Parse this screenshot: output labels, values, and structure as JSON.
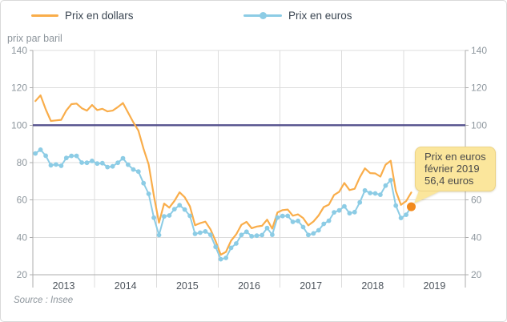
{
  "legend": {
    "dollars": "Prix en dollars",
    "euros": "Prix en euros"
  },
  "source": "Source : Insee",
  "tooltip": {
    "line1": "Prix en euros",
    "line2": "février 2019",
    "line3": "56,4 euros"
  },
  "colors": {
    "dollars": "#F9AD4A",
    "euros": "#8CCCE5",
    "highlight_dot": "#F28A1D",
    "reference_line": "#54518D",
    "grid": "#DCDCDC",
    "axis": "#ADADAD",
    "tick_label": "#8E979E",
    "year_label": "#4D545C",
    "tooltip_bg": "#FBE69C",
    "tooltip_border": "#EDD487",
    "tooltip_text": "#4A4A4A"
  },
  "chart_data": {
    "type": "line",
    "title": "",
    "ylabel": "prix par baril",
    "ylim": [
      20,
      140
    ],
    "yticks": [
      20,
      40,
      60,
      80,
      100,
      120,
      140
    ],
    "x_years": [
      "2013",
      "2014",
      "2015",
      "2016",
      "2017",
      "2018",
      "2019"
    ],
    "x_unit": "month",
    "x_first_month": "2013-01",
    "x_last_month": "2019-02",
    "grid": true,
    "legend_position": "top",
    "reference_line": {
      "value": 100
    },
    "series": [
      {
        "name": "Prix en dollars",
        "marker": false,
        "values": [
          112.9,
          116.0,
          108.5,
          102.3,
          102.6,
          102.9,
          107.9,
          111.3,
          111.6,
          109.1,
          107.8,
          110.8,
          108.1,
          108.8,
          107.4,
          107.8,
          109.7,
          111.9,
          106.8,
          101.6,
          97.1,
          87.4,
          79.0,
          62.3,
          47.8,
          58.1,
          55.9,
          59.5,
          64.1,
          61.5,
          56.6,
          46.5,
          47.6,
          48.4,
          44.3,
          38.0,
          30.7,
          32.2,
          38.2,
          41.6,
          46.7,
          48.3,
          44.9,
          45.8,
          46.2,
          49.5,
          44.7,
          53.3,
          54.6,
          54.9,
          51.6,
          52.3,
          50.3,
          46.4,
          48.5,
          51.7,
          56.2,
          57.5,
          62.7,
          64.4,
          69.1,
          65.3,
          66.0,
          72.1,
          76.9,
          74.4,
          74.2,
          72.5,
          78.9,
          81.0,
          64.8,
          57.4,
          59.4,
          64.0
        ]
      },
      {
        "name": "Prix en euros",
        "marker": true,
        "values": [
          84.9,
          86.9,
          83.7,
          78.6,
          79.0,
          78.3,
          82.5,
          83.6,
          83.6,
          80.0,
          79.9,
          80.9,
          79.5,
          79.7,
          77.6,
          78.0,
          79.9,
          82.3,
          78.9,
          76.3,
          75.2,
          69.0,
          63.3,
          50.5,
          41.2,
          51.2,
          51.7,
          55.1,
          57.2,
          54.9,
          51.5,
          41.9,
          42.5,
          43.2,
          41.4,
          34.9,
          28.3,
          29.0,
          34.4,
          36.7,
          41.3,
          43.0,
          40.6,
          40.9,
          41.2,
          45.0,
          41.4,
          50.6,
          51.4,
          51.5,
          48.3,
          48.8,
          45.5,
          41.3,
          42.1,
          43.8,
          47.2,
          48.9,
          53.4,
          54.4,
          56.6,
          52.9,
          53.5,
          58.7,
          65.1,
          63.7,
          63.5,
          62.8,
          67.7,
          70.6,
          57.0,
          50.4,
          52.1,
          56.4
        ]
      }
    ],
    "highlight": {
      "series": "Prix en euros",
      "month": "2019-02",
      "value": 56.4
    }
  }
}
